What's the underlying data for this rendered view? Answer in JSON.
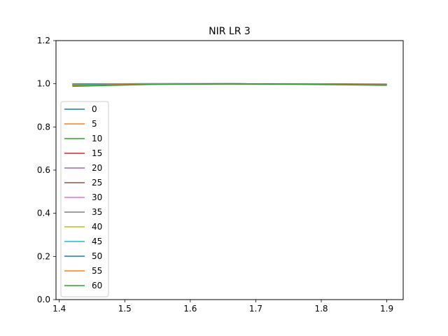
{
  "chart_data": {
    "type": "line",
    "title": "NIR LR 3",
    "xlabel": "",
    "ylabel": "",
    "xlim": [
      1.395,
      1.925
    ],
    "ylim": [
      0.0,
      1.2
    ],
    "xticks": [
      1.4,
      1.5,
      1.6,
      1.7,
      1.8,
      1.9
    ],
    "yticks": [
      0.0,
      0.2,
      0.4,
      0.6,
      0.8,
      1.0,
      1.2
    ],
    "xtick_labels": [
      "1.4",
      "1.5",
      "1.6",
      "1.7",
      "1.8",
      "1.9"
    ],
    "ytick_labels": [
      "0.0",
      "0.2",
      "0.4",
      "0.6",
      "0.8",
      "1.0",
      "1.2"
    ],
    "grid": false,
    "legend_position": "center-left",
    "x": [
      1.42,
      1.54,
      1.66,
      1.78,
      1.9
    ],
    "series": [
      {
        "name": "0",
        "color": "#1f77b4",
        "values": [
          0.999,
          1.0,
          1.0,
          0.999,
          0.998
        ]
      },
      {
        "name": "5",
        "color": "#ff7f0e",
        "values": [
          0.996,
          0.999,
          1.0,
          0.999,
          0.997
        ]
      },
      {
        "name": "10",
        "color": "#2ca02c",
        "values": [
          0.993,
          0.998,
          0.999,
          0.998,
          0.995
        ]
      },
      {
        "name": "15",
        "color": "#d62728",
        "values": [
          0.995,
          0.999,
          1.0,
          0.999,
          0.996
        ]
      },
      {
        "name": "20",
        "color": "#9467bd",
        "values": [
          0.998,
          1.0,
          1.0,
          0.999,
          0.997
        ]
      },
      {
        "name": "25",
        "color": "#8c564b",
        "values": [
          0.994,
          0.999,
          1.0,
          0.999,
          0.996
        ]
      },
      {
        "name": "30",
        "color": "#e377c2",
        "values": [
          0.997,
          1.0,
          1.0,
          0.999,
          0.997
        ]
      },
      {
        "name": "35",
        "color": "#7f7f7f",
        "values": [
          1.0,
          1.0,
          1.0,
          1.0,
          0.999
        ]
      },
      {
        "name": "40",
        "color": "#bcbd22",
        "values": [
          0.996,
          0.999,
          1.0,
          0.999,
          0.997
        ]
      },
      {
        "name": "45",
        "color": "#17becf",
        "values": [
          0.995,
          0.999,
          1.0,
          0.999,
          0.996
        ]
      },
      {
        "name": "50",
        "color": "#1f77b4",
        "values": [
          0.994,
          0.998,
          1.0,
          0.999,
          0.996
        ]
      },
      {
        "name": "55",
        "color": "#ff7f0e",
        "values": [
          0.992,
          0.998,
          0.999,
          0.998,
          0.995
        ]
      },
      {
        "name": "60",
        "color": "#2ca02c",
        "values": [
          0.988,
          0.997,
          0.999,
          0.997,
          0.993
        ]
      }
    ]
  }
}
